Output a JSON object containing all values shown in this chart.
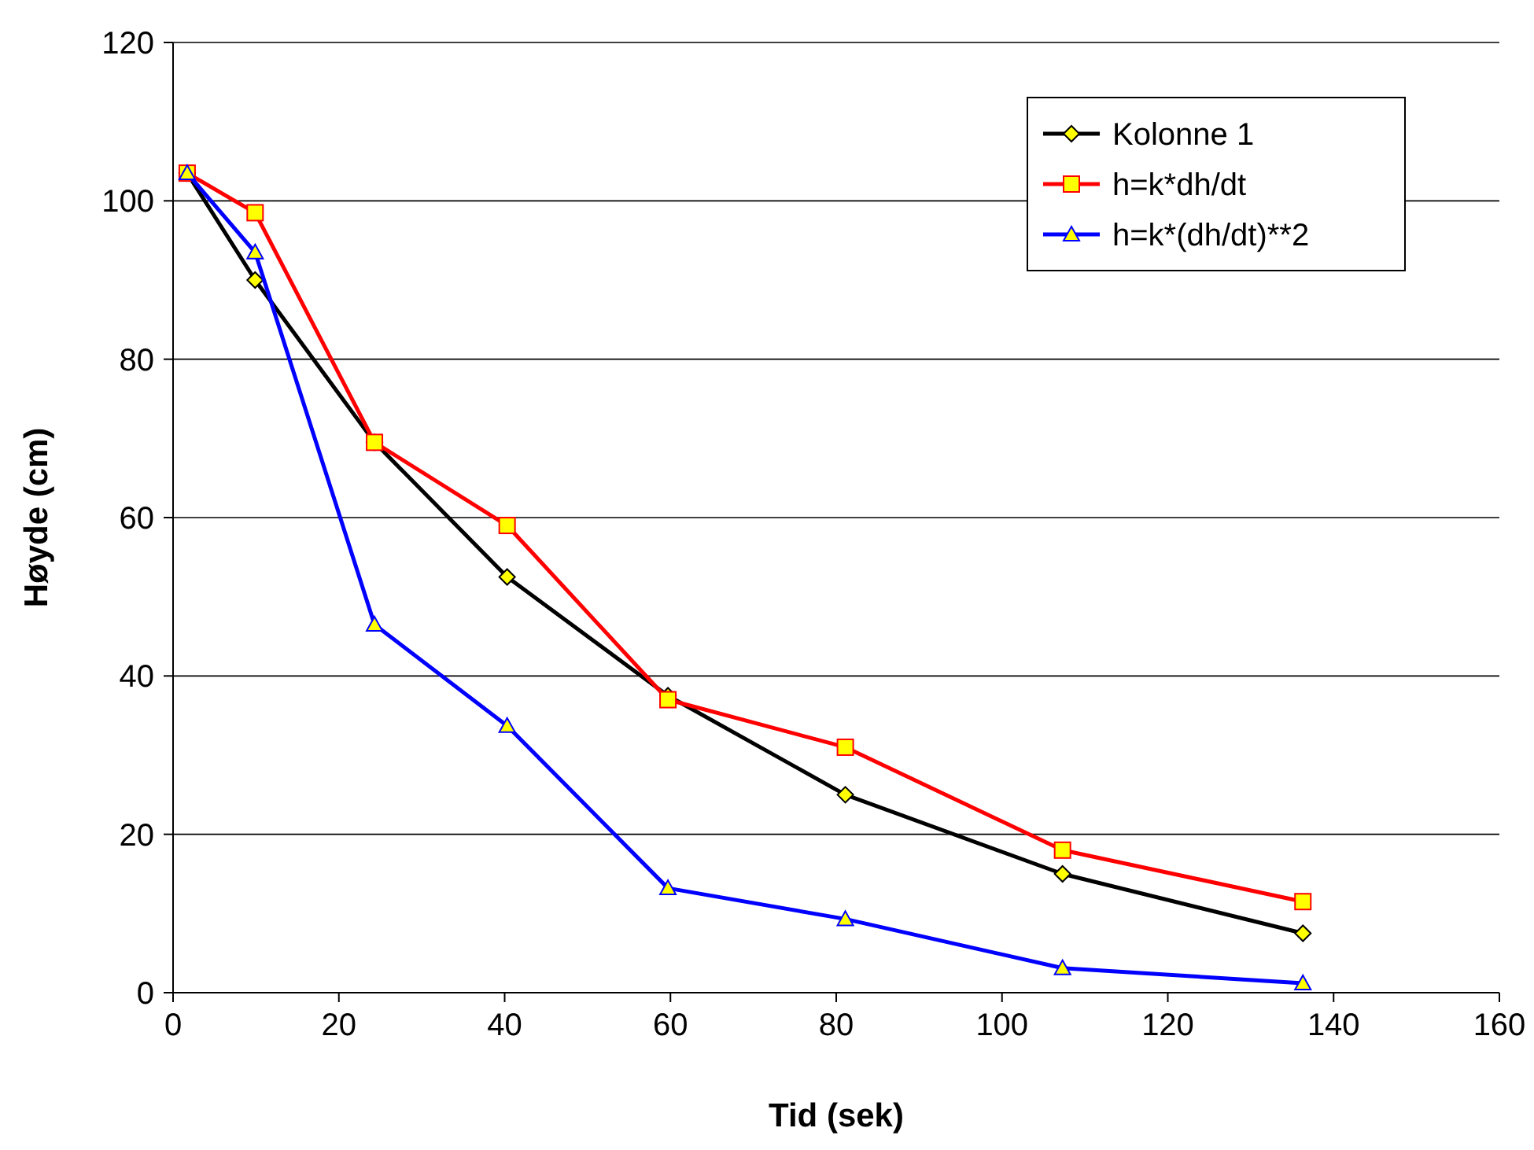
{
  "chart_data": {
    "type": "line",
    "xlabel": "Tid (sek)",
    "ylabel": "Høyde (cm)",
    "x": [
      1.7,
      9.9,
      24.3,
      40.3,
      59.7,
      81.1,
      107.3,
      136.3
    ],
    "series": [
      {
        "name": "Kolonne 1",
        "color": "#000000",
        "marker": "diamond",
        "values": [
          103.5,
          90,
          69.5,
          52.5,
          37.5,
          25,
          15,
          7.5
        ]
      },
      {
        "name": "h=k*dh/dt",
        "color": "#ff0000",
        "marker": "square",
        "values": [
          103.5,
          98.5,
          69.5,
          59,
          37,
          31,
          18,
          11.5
        ]
      },
      {
        "name": "h=k*(dh/dt)**2",
        "color": "#0000ff",
        "marker": "triangle",
        "values": [
          103.5,
          93.5,
          46.5,
          33.7,
          13.2,
          9.3,
          3.1,
          1.2
        ]
      }
    ],
    "xlim": [
      0,
      160
    ],
    "xticks": [
      0,
      20,
      40,
      60,
      80,
      100,
      120,
      140,
      160
    ],
    "ylim": [
      0,
      120
    ],
    "yticks": [
      0,
      20,
      40,
      60,
      80,
      100,
      120
    ],
    "grid": "y",
    "legend": "top right",
    "line_style": "solid"
  }
}
